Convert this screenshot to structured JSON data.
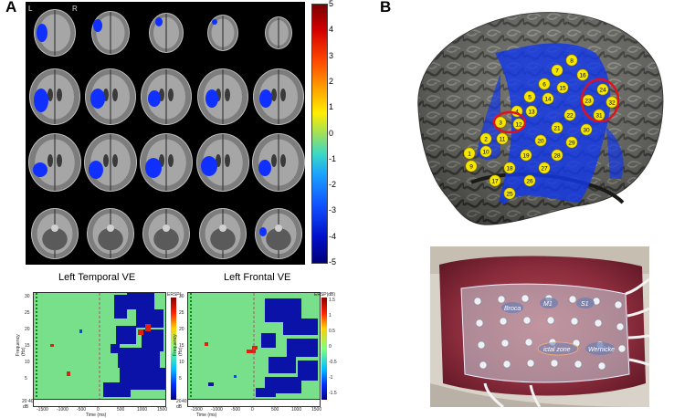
{
  "panel_a": {
    "letter": "A",
    "mri_labels": {
      "left": "L",
      "right": "R"
    },
    "colorbar_ticks": [
      "5",
      "4",
      "3",
      "2",
      "1",
      "0",
      "-1",
      "-2",
      "-3",
      "-4",
      "-5"
    ],
    "tf_left": {
      "title": "Left Temporal VE",
      "ylabel": "Frequency (Hz)",
      "xlabel": "Time (ms)",
      "yticks": [
        "30",
        "25",
        "20",
        "15",
        "10",
        "5"
      ],
      "xticks": [
        "-1500",
        "-1000",
        "-500",
        "0",
        "500",
        "1000",
        "1500"
      ],
      "cbar_title": "ERSP(",
      "bottom_ticks": [
        "20",
        "40"
      ],
      "bottom_unit": "dB"
    },
    "tf_right": {
      "title": "Left Frontal VE",
      "ylabel": "Frequency (Hz)",
      "xlabel": "Time (ms)",
      "yticks": [
        "30",
        "25",
        "20",
        "15",
        "10",
        "5"
      ],
      "xticks": [
        "-1500",
        "-1000",
        "-500",
        "0",
        "500",
        "1000",
        "1500"
      ],
      "cbar_title": "ERSP(dB)",
      "cbar_ticks": [
        "1.5",
        "1",
        "0.5",
        "0",
        "-0.5",
        "-1",
        "-1.5"
      ],
      "bottom_ticks": [
        "20",
        "40"
      ],
      "bottom_unit": "dB"
    }
  },
  "panel_b": {
    "letter": "B",
    "electrodes": [
      "1",
      "2",
      "3",
      "4",
      "5",
      "6",
      "7",
      "8",
      "9",
      "10",
      "11",
      "12",
      "13",
      "14",
      "15",
      "16",
      "17",
      "18",
      "19",
      "20",
      "21",
      "22",
      "23",
      "24",
      "25",
      "26",
      "27",
      "28",
      "29",
      "30",
      "31",
      "32"
    ],
    "photo_labels": {
      "broca": "Broca",
      "m1": "M1",
      "s1": "S1",
      "zone": "ictal zone",
      "wernicke": "Wernicke"
    }
  },
  "colors": {
    "blob_blue": "#1030ff",
    "circle_red": "#e01020",
    "electrode_yellow": "#f6e600"
  }
}
